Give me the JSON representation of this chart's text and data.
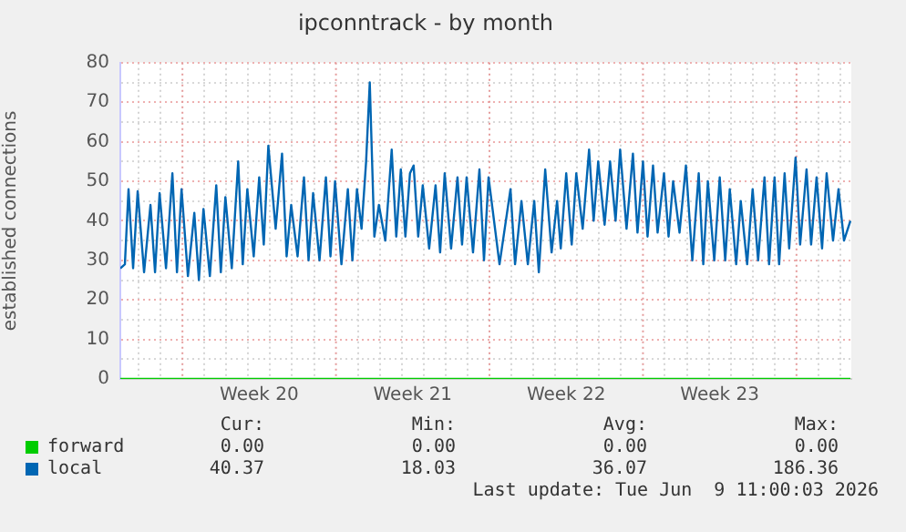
{
  "chart_data": {
    "type": "line",
    "title": "ipconntrack - by month",
    "ylabel": "established connections",
    "xlim": [
      "2026-05-07T04:00",
      "2026-06-09T12:00"
    ],
    "xticks": [
      {
        "value": "2026-05-08T00:00",
        "label": null
      },
      {
        "value": "2026-05-09T00:00",
        "label": null
      },
      {
        "value": "2026-05-11T00:00",
        "label": null
      },
      {
        "value": "2026-05-12T00:00",
        "label": null
      },
      {
        "value": "2026-05-13T00:00",
        "label": null
      },
      {
        "value": "2026-05-13T12:00",
        "label": "Week 20"
      },
      {
        "value": "2026-05-14T00:00",
        "label": null
      },
      {
        "value": "2026-05-15T00:00",
        "label": null
      },
      {
        "value": "2026-05-16T00:00",
        "label": null
      },
      {
        "value": "2026-05-18T00:00",
        "label": null
      },
      {
        "value": "2026-05-19T00:00",
        "label": null
      },
      {
        "value": "2026-05-20T00:00",
        "label": null
      },
      {
        "value": "2026-05-20T12:00",
        "label": "Week 21"
      },
      {
        "value": "2026-05-21T00:00",
        "label": null
      },
      {
        "value": "2026-05-22T00:00",
        "label": null
      },
      {
        "value": "2026-05-23T00:00",
        "label": null
      },
      {
        "value": "2026-05-25T00:00",
        "label": null
      },
      {
        "value": "2026-05-26T00:00",
        "label": null
      },
      {
        "value": "2026-05-27T00:00",
        "label": null
      },
      {
        "value": "2026-05-27T12:00",
        "label": "Week 22"
      },
      {
        "value": "2026-05-28T00:00",
        "label": null
      },
      {
        "value": "2026-05-29T00:00",
        "label": null
      },
      {
        "value": "2026-05-30T00:00",
        "label": null
      },
      {
        "value": "2026-06-01T00:00",
        "label": null
      },
      {
        "value": "2026-06-02T00:00",
        "label": null
      },
      {
        "value": "2026-06-03T00:00",
        "label": null
      },
      {
        "value": "2026-06-03T12:00",
        "label": "Week 23"
      },
      {
        "value": "2026-06-04T00:00",
        "label": null
      },
      {
        "value": "2026-06-05T00:00",
        "label": null
      },
      {
        "value": "2026-06-06T00:00",
        "label": null
      },
      {
        "value": "2026-06-08T00:00",
        "label": null
      },
      {
        "value": "2026-06-09T00:00",
        "label": null
      }
    ],
    "ylim": [
      0,
      80
    ],
    "yticks": [
      0,
      {
        "value": 5,
        "label": null
      },
      10,
      {
        "value": 15,
        "label": null
      },
      20,
      {
        "value": 25,
        "label": null
      },
      30,
      {
        "value": 35,
        "label": null
      },
      40,
      {
        "value": 45,
        "label": null
      },
      50,
      {
        "value": 55,
        "label": null
      },
      60,
      {
        "value": 65,
        "label": null
      },
      70,
      {
        "value": 75,
        "label": null
      },
      80
    ],
    "grid": true,
    "legend": "bottom",
    "marker": "none",
    "ref_lines": [
      {
        "axis": "x",
        "value": "2026-05-10T00:00",
        "color": "#e49a9a",
        "line_style": "dotted"
      },
      {
        "axis": "x",
        "value": "2026-05-17T00:00",
        "color": "#e49a9a",
        "line_style": "dotted"
      },
      {
        "axis": "x",
        "value": "2026-05-24T00:00",
        "color": "#e49a9a",
        "line_style": "dotted"
      },
      {
        "axis": "x",
        "value": "2026-05-31T00:00",
        "color": "#e49a9a",
        "line_style": "dotted"
      },
      {
        "axis": "x",
        "value": "2026-06-07T00:00",
        "color": "#e49a9a",
        "line_style": "dotted"
      }
    ],
    "series": [
      {
        "name": "forward",
        "color": "#00cc00",
        "x": [
          "2026-05-07T04:00",
          "2026-06-09T11:00"
        ],
        "values": [
          0,
          0
        ]
      },
      {
        "name": "local",
        "color": "#0066b3",
        "x": [
          "2026-05-07T04:00",
          "2026-05-07T09:00",
          "2026-05-07T13:00",
          "2026-05-07T18:00",
          "2026-05-07T23:00",
          "2026-05-08T06:00",
          "2026-05-08T13:00",
          "2026-05-08T18:00",
          "2026-05-08T23:00",
          "2026-05-09T06:00",
          "2026-05-09T13:00",
          "2026-05-09T18:00",
          "2026-05-09T23:00",
          "2026-05-10T06:00",
          "2026-05-10T13:00",
          "2026-05-10T18:00",
          "2026-05-10T23:00",
          "2026-05-11T06:00",
          "2026-05-11T13:00",
          "2026-05-11T18:00",
          "2026-05-11T23:00",
          "2026-05-12T06:00",
          "2026-05-12T13:00",
          "2026-05-12T18:00",
          "2026-05-12T23:00",
          "2026-05-13T06:00",
          "2026-05-13T12:00",
          "2026-05-13T17:00",
          "2026-05-13T22:00",
          "2026-05-14T06:00",
          "2026-05-14T13:00",
          "2026-05-14T18:00",
          "2026-05-14T23:00",
          "2026-05-15T06:00",
          "2026-05-15T13:00",
          "2026-05-15T18:00",
          "2026-05-15T23:00",
          "2026-05-16T06:00",
          "2026-05-16T13:00",
          "2026-05-16T18:00",
          "2026-05-16T23:00",
          "2026-05-17T06:00",
          "2026-05-17T13:00",
          "2026-05-17T18:00",
          "2026-05-17T23:00",
          "2026-05-18T04:00",
          "2026-05-18T09:00",
          "2026-05-18T13:00",
          "2026-05-18T18:00",
          "2026-05-18T23:00",
          "2026-05-19T06:00",
          "2026-05-19T13:00",
          "2026-05-19T18:00",
          "2026-05-19T23:00",
          "2026-05-20T04:00",
          "2026-05-20T09:00",
          "2026-05-20T13:00",
          "2026-05-20T18:00",
          "2026-05-20T23:00",
          "2026-05-21T06:00",
          "2026-05-21T13:00",
          "2026-05-21T18:00",
          "2026-05-21T23:00",
          "2026-05-22T06:00",
          "2026-05-22T13:00",
          "2026-05-22T18:00",
          "2026-05-22T23:00",
          "2026-05-23T06:00",
          "2026-05-23T13:00",
          "2026-05-23T18:00",
          "2026-05-23T23:00",
          "2026-05-24T11:00",
          "2026-05-24T23:00",
          "2026-05-25T04:00",
          "2026-05-25T11:00",
          "2026-05-25T18:00",
          "2026-05-26T01:00",
          "2026-05-26T06:00",
          "2026-05-26T13:00",
          "2026-05-26T20:00",
          "2026-05-27T02:00",
          "2026-05-27T06:00",
          "2026-05-27T12:00",
          "2026-05-27T18:00",
          "2026-05-27T23:00",
          "2026-05-28T06:00",
          "2026-05-28T13:00",
          "2026-05-28T18:00",
          "2026-05-28T23:00",
          "2026-05-29T06:00",
          "2026-05-29T12:00",
          "2026-05-29T18:00",
          "2026-05-29T23:00",
          "2026-05-30T06:00",
          "2026-05-30T13:00",
          "2026-05-30T18:00",
          "2026-05-31T00:00",
          "2026-05-31T05:00",
          "2026-05-31T11:00",
          "2026-05-31T16:00",
          "2026-05-31T23:00",
          "2026-06-01T04:00",
          "2026-06-01T09:00",
          "2026-06-01T16:00",
          "2026-06-01T23:00",
          "2026-06-02T06:00",
          "2026-06-02T13:00",
          "2026-06-02T18:00",
          "2026-06-02T23:00",
          "2026-06-03T06:00",
          "2026-06-03T12:00",
          "2026-06-03T18:00",
          "2026-06-03T23:00",
          "2026-06-04T06:00",
          "2026-06-04T11:00",
          "2026-06-04T18:00",
          "2026-06-05T00:00",
          "2026-06-05T06:00",
          "2026-06-05T13:00",
          "2026-06-05T18:00",
          "2026-06-06T00:00",
          "2026-06-06T05:00",
          "2026-06-06T11:00",
          "2026-06-06T16:00",
          "2026-06-06T23:00",
          "2026-06-07T04:00",
          "2026-06-07T11:00",
          "2026-06-07T16:00",
          "2026-06-07T22:00",
          "2026-06-08T04:00",
          "2026-06-08T09:00",
          "2026-06-08T16:00",
          "2026-06-08T22:00",
          "2026-06-09T04:00",
          "2026-06-09T11:00"
        ],
        "values": [
          28,
          29,
          48,
          28,
          47.5,
          27,
          44,
          27,
          47,
          28,
          52,
          27,
          48,
          26,
          42,
          25,
          43,
          26,
          49,
          27,
          46,
          28,
          55,
          29,
          48,
          31,
          51,
          34,
          59,
          38,
          57,
          31,
          44,
          31,
          51,
          30,
          47,
          30,
          51,
          31,
          50,
          29,
          48,
          30,
          48,
          38,
          55,
          75,
          36,
          44,
          35,
          58,
          36,
          53,
          36,
          52,
          54,
          36,
          49,
          33,
          49,
          32,
          52,
          33,
          51,
          34,
          51,
          32,
          53,
          30,
          51,
          29,
          48,
          29,
          45,
          29,
          45,
          27,
          53,
          32,
          45,
          33,
          52,
          34,
          52,
          38,
          58,
          40,
          55,
          39,
          55,
          40,
          58,
          38,
          57,
          37,
          55,
          36,
          54,
          37,
          52,
          36,
          50,
          37,
          54,
          30,
          52,
          29,
          50,
          30,
          51,
          30,
          48,
          29,
          45,
          29,
          48,
          30,
          51,
          29,
          51,
          29,
          52,
          33,
          56,
          34,
          53,
          34,
          51,
          33,
          52,
          35,
          48,
          35,
          40
        ]
      }
    ],
    "annotations": [
      "Cur:",
      "Min:",
      "Avg:",
      "Max:",
      "0.00",
      "0.00",
      "0.00",
      "0.00",
      "40.37",
      "18.03",
      "36.07",
      "186.36",
      "Last update: Tue Jun  9 11:00:03 2026"
    ]
  }
}
